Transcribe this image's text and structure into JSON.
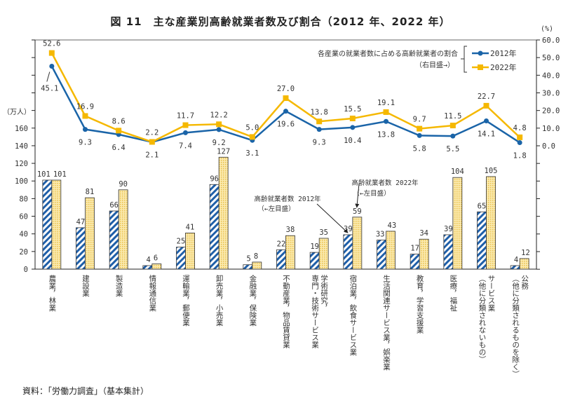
{
  "title": "図 11　主な産業別高齢就業者数及び割合（2012 年、2022 年）",
  "source": "資料：「労働力調査」（基本集計）",
  "chart_data": {
    "type": "bar+line",
    "title": "図 11　主な産業別高齢就業者数及び割合（2012 年、2022 年）",
    "left_axis": {
      "unit": "（万人）",
      "range": [
        0,
        260
      ],
      "ticks": [
        0,
        20,
        40,
        60,
        80,
        100,
        120,
        140,
        160
      ]
    },
    "right_axis": {
      "unit": "(%)",
      "range": [
        -70,
        60
      ],
      "ticks": [
        "0.0",
        "10.0",
        "20.0",
        "30.0",
        "40.0",
        "50.0",
        "60.0"
      ]
    },
    "categories": [
      "農業，林業",
      "建設業",
      "製造業",
      "情報通信業",
      "運輸業，郵便業",
      "卸売業，小売業",
      "金融業，保険業",
      "不動産業，物品賃貸業",
      "学術研究，\n専門・技術サービス業",
      "宿泊業，飲食サービス業",
      "生活関連サービス業，娯楽業",
      "教育，学習支援業",
      "医療，福祉",
      "サービス業\n（他に分類されないもの）",
      "公務\n（他に分類されるものを除く）"
    ],
    "bar_series": [
      {
        "name": "高齢就業者数 2012年",
        "axis_note": "（←左目盛）",
        "color": "#1f5fa8",
        "values": [
          101,
          47,
          66,
          4,
          25,
          96,
          5,
          22,
          19,
          39,
          33,
          17,
          39,
          65,
          4
        ]
      },
      {
        "name": "高齢就業者数 2022年",
        "axis_note": "（←左目盛）",
        "color": "#f5d36a",
        "values": [
          101,
          81,
          90,
          6,
          41,
          127,
          8,
          38,
          35,
          59,
          43,
          34,
          104,
          105,
          12
        ]
      }
    ],
    "line_series": [
      {
        "name": "2012年",
        "color": "#1a64a8",
        "values": [
          45.1,
          9.3,
          6.4,
          2.1,
          7.4,
          9.2,
          3.1,
          19.6,
          9.3,
          10.4,
          13.8,
          5.8,
          5.5,
          14.1,
          1.8
        ]
      },
      {
        "name": "2022年",
        "color": "#f5b800",
        "values": [
          52.6,
          16.9,
          8.6,
          2.2,
          11.7,
          12.2,
          5.0,
          27.0,
          13.8,
          15.5,
          19.1,
          9.7,
          11.5,
          22.7,
          4.8
        ]
      }
    ],
    "line_legend_title": "各産業の就業者数に占める高齢就業者の割合",
    "line_legend_note": "（右目盛→）",
    "legend_placement": "top-right",
    "grid": false
  }
}
